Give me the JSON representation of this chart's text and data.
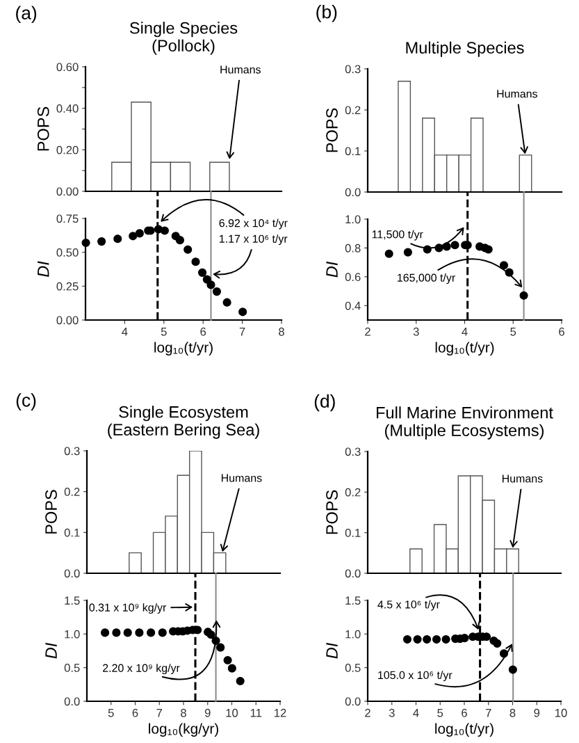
{
  "chart_data": [
    {
      "type": "histogram",
      "title": "Single Species\n(Pollock)",
      "ylabel": "POPS",
      "tick_labels": "y",
      "color": "#ffffff",
      "bins": [
        3.67,
        4.17,
        4.67,
        5.17,
        5.67,
        6.17,
        6.67
      ],
      "values": [
        0.14,
        0.43,
        0.14,
        0.14,
        0,
        0.14
      ],
      "xlim": [
        3,
        8
      ],
      "ylim": [
        0,
        0.6
      ],
      "yticks": [
        {
          "value": 0,
          "label": "0.00"
        },
        {
          "value": 0.1,
          "label": null
        },
        {
          "value": 0.2,
          "label": "0.20"
        },
        {
          "value": 0.3,
          "label": null
        },
        {
          "value": 0.4,
          "label": "0.40"
        },
        {
          "value": 0.5,
          "label": null
        },
        {
          "value": 0.6,
          "label": "0.60"
        }
      ],
      "annotations": [
        "(a)",
        {
          "text": "Humans",
          "x": 6.67,
          "y": 0.15
        }
      ]
    },
    {
      "type": "scatter",
      "xlabel": "log₁₀(t/yr)",
      "ylabel": "DI",
      "marker": "circle",
      "color": "#000000",
      "x": [
        3.01,
        3.41,
        3.82,
        4.21,
        4.38,
        4.6,
        4.66,
        4.86,
        5.02,
        5.3,
        5.41,
        5.61,
        5.81,
        5.98,
        6.1,
        6.2,
        6.35,
        6.61,
        7.01
      ],
      "values": [
        0.57,
        0.58,
        0.6,
        0.62,
        0.64,
        0.66,
        0.66,
        0.67,
        0.66,
        0.62,
        0.59,
        0.52,
        0.43,
        0.35,
        0.3,
        0.26,
        0.21,
        0.13,
        0.06
      ],
      "xlim": [
        3,
        8
      ],
      "ylim": [
        0,
        0.75
      ],
      "xticks": [
        4,
        5,
        6,
        7,
        8
      ],
      "yticks": [
        {
          "value": 0,
          "label": "0.00"
        },
        {
          "value": 0.25,
          "label": "0.25"
        },
        {
          "value": 0.5,
          "label": "0.50"
        },
        {
          "value": 0.75,
          "label": "0.75"
        }
      ],
      "ref_lines": [
        {
          "axis": "x",
          "value": 4.84,
          "color": "#000000",
          "line_style": "dashed"
        },
        {
          "axis": "x",
          "value": 6.2,
          "color": "#8c8c8c",
          "line_style": "solid"
        }
      ],
      "annotations": [
        {
          "text": "6.92 x 10⁴ t/yr",
          "x": 4.9,
          "y": 0.72
        },
        {
          "text": "1.17 x 10⁶ t/yr",
          "x": 6.22,
          "y": 0.34
        }
      ]
    },
    {
      "type": "histogram",
      "title": "Multiple Species",
      "ylabel": "POPS",
      "tick_labels": "y",
      "color": "#ffffff",
      "bins": [
        2.63,
        2.88,
        3.13,
        3.38,
        3.63,
        3.88,
        4.13,
        4.38,
        4.63,
        4.88,
        5.13,
        5.38
      ],
      "values": [
        0.27,
        0,
        0.18,
        0.09,
        0.09,
        0.09,
        0.18,
        0,
        0,
        0,
        0.09
      ],
      "xlim": [
        2,
        6
      ],
      "ylim": [
        0,
        0.3
      ],
      "yticks": [
        {
          "value": 0,
          "label": "0.0"
        },
        0.1,
        0.2,
        0.3
      ],
      "annotations": [
        "(b)",
        {
          "text": "Humans",
          "x": 5.25,
          "y": 0.09
        }
      ]
    },
    {
      "type": "scatter",
      "xlabel": "log₁₀(t/yr)",
      "ylabel": "DI",
      "marker": "circle",
      "color": "#000000",
      "x": [
        2.44,
        2.83,
        3.23,
        3.47,
        3.63,
        3.8,
        4.01,
        4.06,
        4.31,
        4.42,
        4.49,
        4.81,
        4.92,
        5.22
      ],
      "values": [
        0.76,
        0.77,
        0.79,
        0.8,
        0.81,
        0.82,
        0.82,
        0.82,
        0.81,
        0.8,
        0.79,
        0.68,
        0.63,
        0.47
      ],
      "xlim": [
        2,
        6
      ],
      "ylim": [
        0.3,
        1.0
      ],
      "xticks": [
        2,
        3,
        4,
        5,
        6
      ],
      "yticks": [
        0.4,
        0.6,
        0.8,
        {
          "value": 1.0,
          "label": "1.0"
        }
      ],
      "ref_lines": [
        {
          "axis": "x",
          "value": 4.06,
          "color": "#000000",
          "line_style": "dashed"
        },
        {
          "axis": "x",
          "value": 5.22,
          "color": "#8c8c8c",
          "line_style": "solid"
        }
      ],
      "annotations": [
        {
          "text": "11,500 t/yr",
          "x": 4.0,
          "y": 0.95
        },
        {
          "text": "165,000 t/yr",
          "x": 5.2,
          "y": 0.52
        }
      ]
    },
    {
      "type": "histogram",
      "title": "Single Ecosystem\n(Eastern Bering Sea)",
      "ylabel": "POPS",
      "tick_labels": "y",
      "color": "#ffffff",
      "bins": [
        5.75,
        6.25,
        6.75,
        7.25,
        7.75,
        8.25,
        8.75,
        9.25,
        9.75
      ],
      "values": [
        0.05,
        0,
        0.1,
        0.14,
        0.24,
        0.3,
        0.1,
        0.05
      ],
      "xlim": [
        4,
        12
      ],
      "ylim": [
        0,
        0.3
      ],
      "yticks": [
        {
          "value": 0,
          "label": "0.0"
        },
        0.1,
        0.2,
        0.3
      ],
      "annotations": [
        "(c)",
        {
          "text": "Humans",
          "x": 9.6,
          "y": 0.05
        }
      ]
    },
    {
      "type": "scatter",
      "xlabel": "log₁₀(kg/yr)",
      "ylabel": "DI",
      "marker": "circle",
      "color": "#000000",
      "x": [
        4.75,
        5.22,
        5.69,
        6.17,
        6.65,
        7.13,
        7.57,
        7.78,
        7.97,
        8.16,
        8.38,
        8.58,
        9.01,
        9.14,
        9.34,
        9.53,
        9.83,
        10.01,
        10.35
      ],
      "values": [
        1.02,
        1.02,
        1.02,
        1.02,
        1.02,
        1.02,
        1.04,
        1.04,
        1.04,
        1.05,
        1.06,
        1.06,
        1.03,
        0.99,
        0.9,
        0.8,
        0.61,
        0.49,
        0.3
      ],
      "xlim": [
        4,
        12
      ],
      "ylim": [
        0,
        1.5
      ],
      "xticks": [
        5,
        6,
        7,
        8,
        9,
        10,
        11,
        12
      ],
      "yticks": [
        {
          "value": 0,
          "label": "0.0"
        },
        0.5,
        {
          "value": 1.0,
          "label": "1.0"
        },
        1.5
      ],
      "ref_lines": [
        {
          "axis": "x",
          "value": 8.49,
          "color": "#000000",
          "line_style": "dashed"
        },
        {
          "axis": "x",
          "value": 9.34,
          "color": "#8c8c8c",
          "line_style": "solid"
        }
      ],
      "annotations": [
        {
          "text": "0.31 x 10⁹ kg/yr",
          "x": 8.42,
          "y": 1.4
        },
        {
          "text": "2.20 x 10⁹ kg/yr",
          "x": 9.36,
          "y": 1.22
        }
      ]
    },
    {
      "type": "histogram",
      "title": "Full Marine Environment\n(Multiple Ecosystems)",
      "ylabel": "POPS",
      "tick_labels": "y",
      "color": "#ffffff",
      "bins": [
        3.75,
        4.25,
        4.75,
        5.25,
        5.75,
        6.25,
        6.75,
        7.25,
        7.75,
        8.25
      ],
      "values": [
        0.06,
        0,
        0.12,
        0.06,
        0.24,
        0.24,
        0.18,
        0.06,
        0.06
      ],
      "xlim": [
        2,
        10
      ],
      "ylim": [
        0,
        0.3
      ],
      "yticks": [
        {
          "value": 0,
          "label": "0.0"
        },
        0.1,
        0.2,
        0.3
      ],
      "annotations": [
        "(d)",
        {
          "text": "Humans",
          "x": 8.0,
          "y": 0.06
        }
      ]
    },
    {
      "type": "scatter",
      "xlabel": "log₁₀(t/yr)",
      "ylabel": "DI",
      "marker": "circle",
      "color": "#000000",
      "x": [
        3.64,
        4.06,
        4.45,
        4.85,
        5.24,
        5.63,
        5.82,
        6.01,
        6.35,
        6.57,
        6.76,
        6.92,
        7.22,
        7.36,
        7.64,
        8.01
      ],
      "values": [
        0.92,
        0.92,
        0.92,
        0.92,
        0.92,
        0.93,
        0.93,
        0.94,
        0.96,
        0.96,
        0.96,
        0.96,
        0.9,
        0.86,
        0.71,
        0.47
      ],
      "xlim": [
        2,
        10
      ],
      "ylim": [
        0,
        1.5
      ],
      "xticks": [
        2,
        3,
        4,
        5,
        6,
        7,
        8,
        9,
        10
      ],
      "yticks": [
        {
          "value": 0,
          "label": "0.0"
        },
        0.5,
        {
          "value": 1.0,
          "label": "1.0"
        },
        1.5
      ],
      "ref_lines": [
        {
          "axis": "x",
          "value": 6.65,
          "color": "#000000",
          "line_style": "dashed"
        },
        {
          "axis": "x",
          "value": 8.02,
          "color": "#8c8c8c",
          "line_style": "solid"
        }
      ],
      "annotations": [
        {
          "text": "4.5 x 10⁶ t/yr",
          "x": 6.6,
          "y": 1.05
        },
        {
          "text": "105.0 x 10⁶ t/yr",
          "x": 8.0,
          "y": 0.87
        }
      ]
    }
  ]
}
